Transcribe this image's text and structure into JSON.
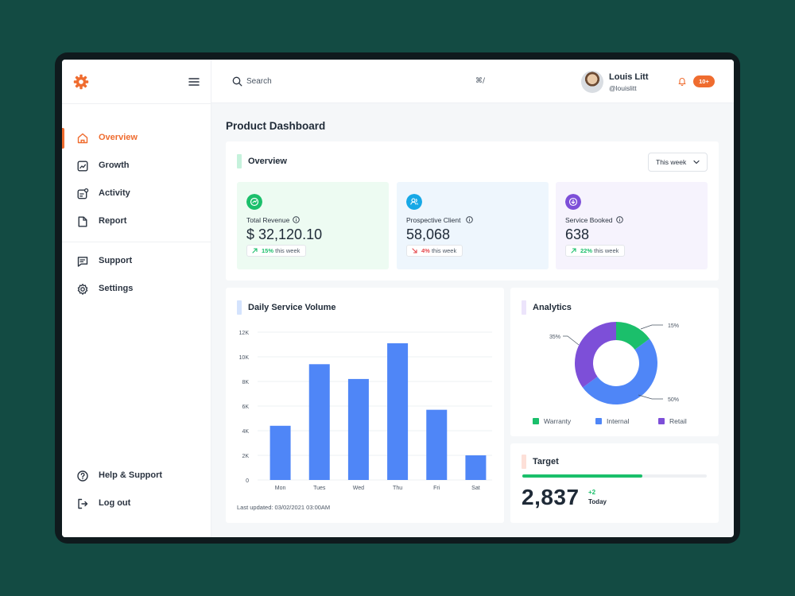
{
  "app": {
    "icons": {
      "logo": "gear-logo-icon",
      "menu": "hamburger-icon"
    },
    "accent_color": "#ef6c2f"
  },
  "sidebar": {
    "items": [
      {
        "label": "Overview",
        "icon": "home-icon",
        "active": true
      },
      {
        "label": "Growth",
        "icon": "trend-chart-icon"
      },
      {
        "label": "Activity",
        "icon": "activity-icon"
      },
      {
        "label": "Report",
        "icon": "document-icon"
      },
      {
        "label": "Support",
        "icon": "chat-icon"
      },
      {
        "label": "Settings",
        "icon": "gear-icon"
      }
    ],
    "footer": [
      {
        "label": "Help & Support",
        "icon": "help-icon"
      },
      {
        "label": "Log out",
        "icon": "logout-icon"
      }
    ]
  },
  "topbar": {
    "search": {
      "placeholder": "Search",
      "shortcut": "⌘/"
    },
    "user": {
      "name": "Louis Litt",
      "handle": "@louislitt"
    },
    "notifications": {
      "badge": "10+",
      "icon": "bell-icon"
    }
  },
  "main": {
    "title": "Product Dashboard",
    "overview": {
      "title": "Overview",
      "period": "This week",
      "stats": [
        {
          "label": "Total Revenue",
          "value": "$ 32,120.10",
          "change": "15%",
          "direction": "up",
          "suffix": "this week",
          "color": "#1bbf6b",
          "bg": "#edfbf2"
        },
        {
          "label": "Prospective Client",
          "value": "58,068",
          "change": "4%",
          "direction": "down",
          "suffix": "this week",
          "color": "#16a8e6",
          "bg": "#eef6fd"
        },
        {
          "label": "Service Booked",
          "value": "638",
          "change": "22%",
          "direction": "up",
          "suffix": "this week",
          "color": "#7d4fd8",
          "bg": "#f6f3fd"
        }
      ]
    },
    "daily_volume": {
      "title": "Daily Service Volume",
      "updated": "Last updated: 03/02/2021 03:00AM"
    },
    "analytics": {
      "title": "Analytics"
    },
    "target": {
      "title": "Target",
      "value": "2,837",
      "delta": "+2",
      "period": "Today",
      "progress": 0.65
    }
  },
  "chart_data": [
    {
      "type": "bar",
      "title": "Daily Service Volume",
      "categories": [
        "Mon",
        "Tues",
        "Wed",
        "Thu",
        "Fri",
        "Sat"
      ],
      "values": [
        4400,
        9400,
        8200,
        11100,
        5700,
        2000
      ],
      "yticks": [
        "0",
        "2K",
        "4K",
        "6K",
        "8K",
        "10K",
        "12K"
      ],
      "ylim": [
        0,
        12000
      ],
      "color": "#4f86f7",
      "grid": true
    },
    {
      "type": "pie",
      "title": "Analytics",
      "donut": true,
      "slices": [
        {
          "name": "Warranty",
          "value": 15,
          "label": "15%",
          "color": "#1bbf6b"
        },
        {
          "name": "Internal",
          "value": 50,
          "label": "50%",
          "color": "#4f86f7"
        },
        {
          "name": "Retail",
          "value": 35,
          "label": "35%",
          "color": "#7d4fd8"
        }
      ],
      "legend": "bottom"
    }
  ]
}
